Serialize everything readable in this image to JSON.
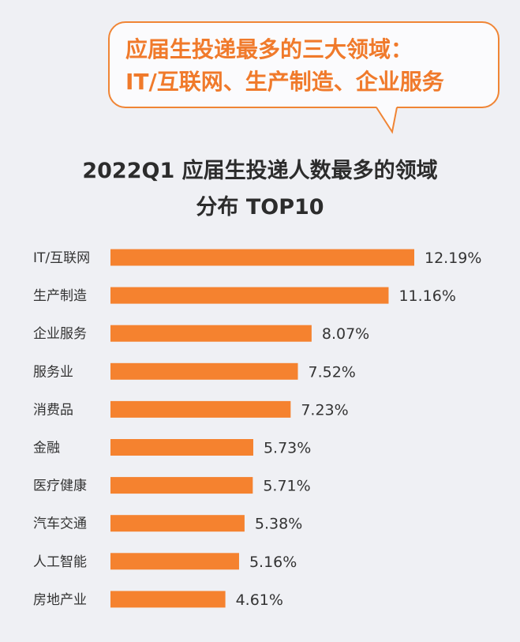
{
  "callout": {
    "line1": "应届生投递最多的三大领域：",
    "line2": "IT/互联网、生产制造、企业服务"
  },
  "chart_data": {
    "type": "bar",
    "orientation": "horizontal",
    "title_line1": "2022Q1 应届生投递人数最多的领域",
    "title_line2": "分布 TOP10",
    "categories": [
      "IT/互联网",
      "生产制造",
      "企业服务",
      "服务业",
      "消费品",
      "金融",
      "医疗健康",
      "汽车交通",
      "人工智能",
      "房地产业"
    ],
    "values": [
      12.19,
      11.16,
      8.07,
      7.52,
      7.23,
      5.73,
      5.71,
      5.38,
      5.16,
      4.61
    ],
    "value_labels": [
      "12.19%",
      "11.16%",
      "8.07%",
      "7.52%",
      "7.23%",
      "5.73%",
      "5.71%",
      "5.38%",
      "5.16%",
      "4.61%"
    ],
    "bar_color": "#f5822f",
    "grid": false,
    "legend": "none"
  },
  "colors": {
    "background": "#eff0f4",
    "accent": "#f07a2b",
    "title": "#2c2c2c",
    "label": "#333333"
  }
}
